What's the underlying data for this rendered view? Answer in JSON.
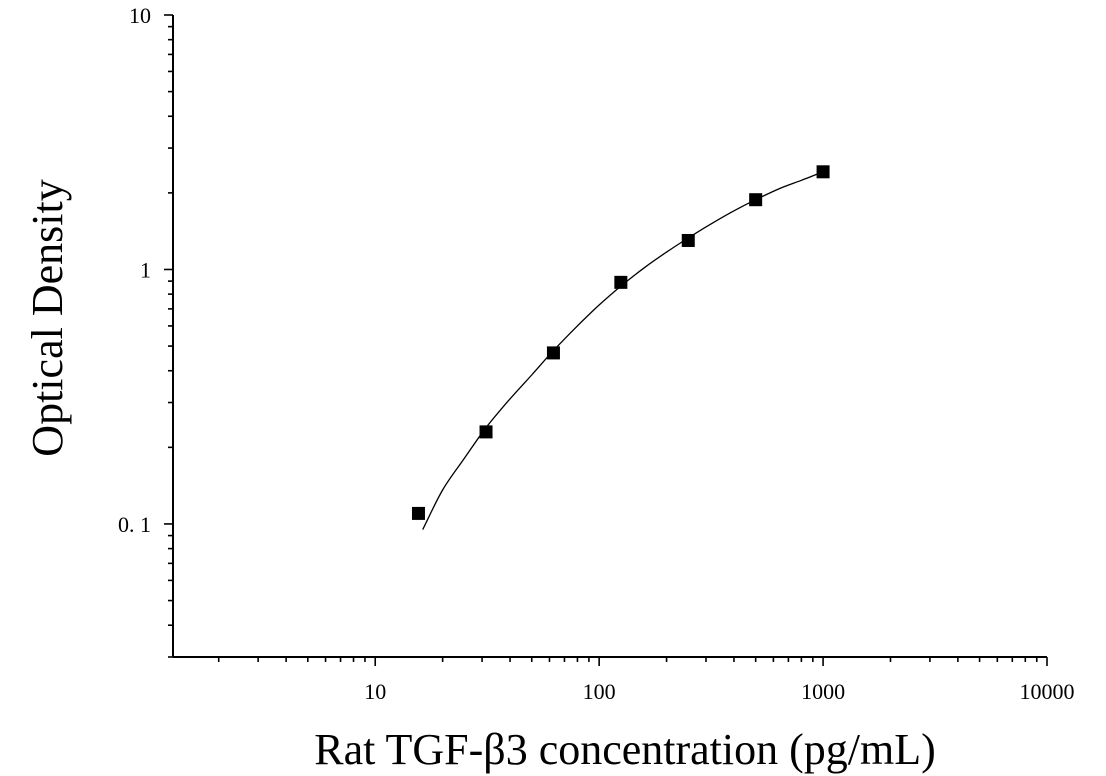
{
  "chart_data": {
    "type": "scatter",
    "title": "",
    "xlabel": "Rat TGF-β3 concentration (pg/mL)",
    "ylabel": "Optical Density",
    "x_scale": "log",
    "y_scale": "log",
    "xlim": [
      1.25,
      10000
    ],
    "ylim": [
      0.03,
      10
    ],
    "x_ticks": [
      {
        "value": 10,
        "label": "10"
      },
      {
        "value": 100,
        "label": "100"
      },
      {
        "value": 1000,
        "label": "1000"
      },
      {
        "value": 10000,
        "label": "10000"
      }
    ],
    "y_ticks": [
      {
        "value": 10,
        "label": "10"
      },
      {
        "value": 1,
        "label": "1"
      },
      {
        "value": 0.1,
        "label": "0. 1"
      }
    ],
    "grid": false,
    "legend": "none",
    "series": [
      {
        "marker": "square",
        "color": "#000000",
        "points": [
          {
            "x": 15.6,
            "y": 0.11
          },
          {
            "x": 31.25,
            "y": 0.23
          },
          {
            "x": 62.5,
            "y": 0.47
          },
          {
            "x": 125,
            "y": 0.89
          },
          {
            "x": 250,
            "y": 1.3
          },
          {
            "x": 500,
            "y": 1.88
          },
          {
            "x": 1000,
            "y": 2.42
          }
        ]
      }
    ],
    "fit_curve": {
      "color": "#000000",
      "points": [
        {
          "x": 16.3,
          "y": 0.095
        },
        {
          "x": 20,
          "y": 0.136
        },
        {
          "x": 25,
          "y": 0.181
        },
        {
          "x": 31.25,
          "y": 0.239
        },
        {
          "x": 40,
          "y": 0.31
        },
        {
          "x": 50,
          "y": 0.385
        },
        {
          "x": 62.5,
          "y": 0.48
        },
        {
          "x": 80,
          "y": 0.6
        },
        {
          "x": 100,
          "y": 0.725
        },
        {
          "x": 125,
          "y": 0.86
        },
        {
          "x": 160,
          "y": 1.02
        },
        {
          "x": 200,
          "y": 1.17
        },
        {
          "x": 250,
          "y": 1.33
        },
        {
          "x": 320,
          "y": 1.52
        },
        {
          "x": 400,
          "y": 1.7
        },
        {
          "x": 500,
          "y": 1.88
        },
        {
          "x": 640,
          "y": 2.08
        },
        {
          "x": 800,
          "y": 2.24
        },
        {
          "x": 1000,
          "y": 2.42
        }
      ]
    }
  }
}
